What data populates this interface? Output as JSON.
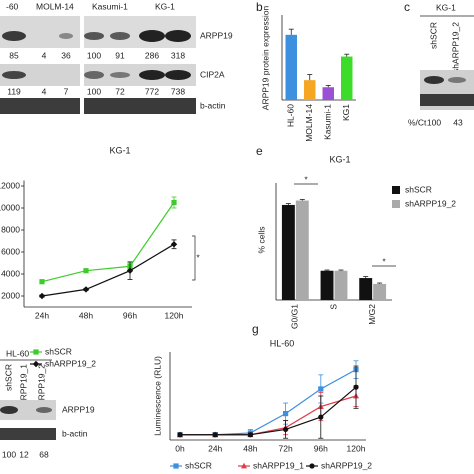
{
  "panel_labels": [
    "b",
    "c",
    "e",
    "g"
  ],
  "blot_a": {
    "lanes": [
      "-60",
      "MOLM-14",
      "Kasumi-1",
      "KG-1"
    ],
    "proteins": [
      "ARPP19",
      "CIP2A",
      "b-actin"
    ],
    "arpp19_quant": [
      85,
      4,
      36,
      100,
      91,
      286,
      318
    ],
    "cip2a_quant": [
      119,
      4,
      7,
      100,
      72,
      772,
      738
    ]
  },
  "blot_c": {
    "title": "KG-1",
    "lanes": [
      "shSCR",
      "shARPP19_2"
    ],
    "quant_label": "%/Ct",
    "quant": [
      100,
      43
    ]
  },
  "blot_f": {
    "title": "HL-60",
    "lanes": [
      "shSCR",
      "shARPP19_1",
      "shARPP19_2"
    ],
    "proteins": [
      "ARPP19",
      "b-actin"
    ],
    "quant": [
      100,
      12,
      68
    ]
  },
  "chart_data": [
    {
      "type": "bar",
      "y_label": "ARPP19 protein expression",
      "categories": [
        "HL-60",
        "MOLM-14",
        "Kasumi-1",
        "KG1"
      ],
      "values": [
        1.38,
        0.42,
        0.27,
        0.92
      ],
      "errors": [
        0.12,
        0.12,
        0.04,
        0.05
      ],
      "colors": [
        "#3d8fe0",
        "#f5a623",
        "#9b4fd6",
        "#3ddc2a"
      ],
      "ylim": [
        0,
        1.8
      ]
    },
    {
      "type": "line",
      "title": "KG-1",
      "categories": [
        "24h",
        "48h",
        "96h",
        "120h"
      ],
      "series": [
        {
          "name": "shSCR",
          "color": "#3dcc2a",
          "marker": "square",
          "values": [
            3300,
            4300,
            4700,
            10500
          ],
          "errors": [
            150,
            150,
            300,
            500
          ]
        },
        {
          "name": "shARPP19_2",
          "color": "#111111",
          "marker": "diamond",
          "values": [
            2000,
            2600,
            4300,
            6700
          ],
          "errors": [
            100,
            100,
            800,
            400
          ]
        }
      ],
      "ylim": [
        1000,
        12500
      ],
      "yticks": [
        2000,
        4000,
        6000,
        8000,
        10000,
        12000
      ],
      "annotations": [
        "*"
      ]
    },
    {
      "type": "grouped_bar",
      "title": "KG-1",
      "y_label": "% cells",
      "categories": [
        "G0/G1",
        "S",
        "M/G2"
      ],
      "series": [
        {
          "name": "shSCR",
          "color": "#111111",
          "values": [
            65,
            20,
            15
          ],
          "errors": [
            1,
            0.5,
            1
          ]
        },
        {
          "name": "shARPP19_2",
          "color": "#aaaaaa",
          "values": [
            68,
            20,
            11
          ],
          "errors": [
            0.8,
            0.5,
            0.6
          ]
        }
      ],
      "ylim": [
        0,
        80
      ],
      "annotations": [
        "*",
        "*"
      ]
    },
    {
      "type": "line",
      "title": "HL-60",
      "y_label": "Luminescence (RLU)",
      "categories": [
        "0h",
        "24h",
        "48h",
        "72h",
        "96h",
        "120h"
      ],
      "series": [
        {
          "name": "shSCR",
          "color": "#3d8fe0",
          "marker": "square",
          "values": [
            15,
            15,
            20,
            75,
            145,
            200
          ],
          "errors": [
            5,
            5,
            10,
            30,
            40,
            25
          ]
        },
        {
          "name": "shARPP19_1",
          "color": "#e03c4a",
          "marker": "triangle",
          "values": [
            15,
            15,
            15,
            35,
            95,
            125
          ],
          "errors": [
            5,
            5,
            5,
            20,
            40,
            30
          ]
        },
        {
          "name": "shARPP19_2",
          "color": "#111111",
          "marker": "circle",
          "values": [
            15,
            15,
            15,
            30,
            65,
            150
          ],
          "errors": [
            5,
            5,
            5,
            25,
            60,
            60
          ]
        }
      ],
      "ylim": [
        0,
        250
      ]
    }
  ]
}
